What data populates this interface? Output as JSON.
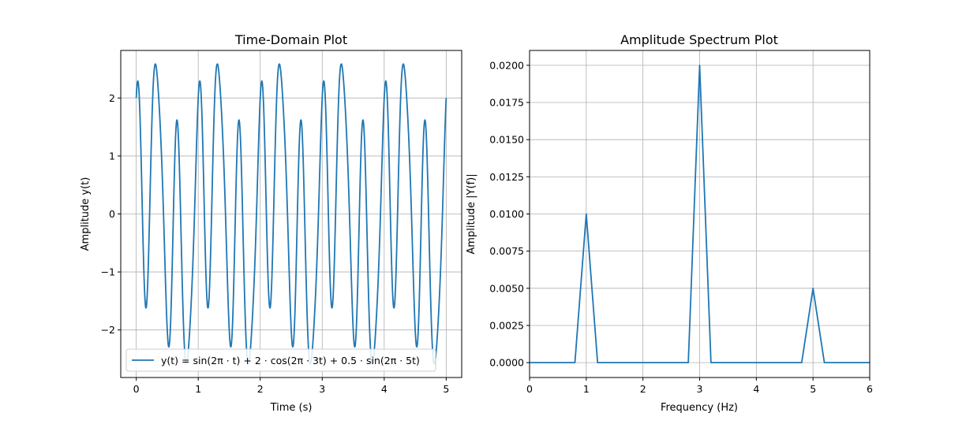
{
  "chart_data": [
    {
      "type": "line",
      "title": "Time-Domain Plot",
      "xlabel": "Time (s)",
      "ylabel": "Amplitude y(t)",
      "xlim": [
        -0.25,
        5.25
      ],
      "ylim": [
        -2.82,
        2.82
      ],
      "xticks": [
        0,
        1,
        2,
        3,
        4,
        5
      ],
      "xtick_labels": [
        "0",
        "1",
        "2",
        "3",
        "4",
        "5"
      ],
      "yticks": [
        -2,
        -1,
        0,
        1,
        2
      ],
      "ytick_labels": [
        "−2",
        "−1",
        "0",
        "1",
        "2"
      ],
      "grid": true,
      "legend_position": "lower-center",
      "color": "#1f77b4",
      "series": [
        {
          "name": "y(t) = sin(2π · t) + 2 · cos(2π · 3t) + 0.5 · sin(2π · 5t)",
          "function": {
            "terms": [
              {
                "func": "sin",
                "amplitude": 1,
                "frequency": 1
              },
              {
                "func": "cos",
                "amplitude": 2,
                "frequency": 3
              },
              {
                "func": "sin",
                "amplitude": 0.5,
                "frequency": 5
              }
            ],
            "t_range": [
              0,
              5
            ]
          }
        }
      ]
    },
    {
      "type": "line",
      "title": "Amplitude Spectrum Plot",
      "xlabel": "Frequency (Hz)",
      "ylabel": "Amplitude |Y(f)|",
      "xlim": [
        0,
        6
      ],
      "ylim": [
        -0.001,
        0.021
      ],
      "xticks": [
        0,
        1,
        2,
        3,
        4,
        5,
        6
      ],
      "xtick_labels": [
        "0",
        "1",
        "2",
        "3",
        "4",
        "5",
        "6"
      ],
      "yticks": [
        0,
        0.0025,
        0.005,
        0.0075,
        0.01,
        0.0125,
        0.015,
        0.0175,
        0.02
      ],
      "ytick_labels": [
        "0.0000",
        "0.0025",
        "0.0050",
        "0.0075",
        "0.0100",
        "0.0125",
        "0.0150",
        "0.0175",
        "0.0200"
      ],
      "grid": true,
      "color": "#1f77b4",
      "series": [
        {
          "x": [
            0,
            0.2,
            0.4,
            0.6,
            0.8,
            1.0,
            1.2,
            1.4,
            1.6,
            1.8,
            2.0,
            2.2,
            2.4,
            2.6,
            2.8,
            3.0,
            3.2,
            3.4,
            3.6,
            3.8,
            4.0,
            4.2,
            4.4,
            4.6,
            4.8,
            5.0,
            5.2,
            5.4,
            5.6,
            5.8,
            6.0
          ],
          "y": [
            0,
            0,
            0,
            0,
            0,
            0.01,
            0,
            0,
            0,
            0,
            0,
            0,
            0,
            0,
            0,
            0.02,
            0,
            0,
            0,
            0,
            0,
            0,
            0,
            0,
            0,
            0.005,
            0,
            0,
            0,
            0,
            0
          ]
        }
      ]
    }
  ]
}
